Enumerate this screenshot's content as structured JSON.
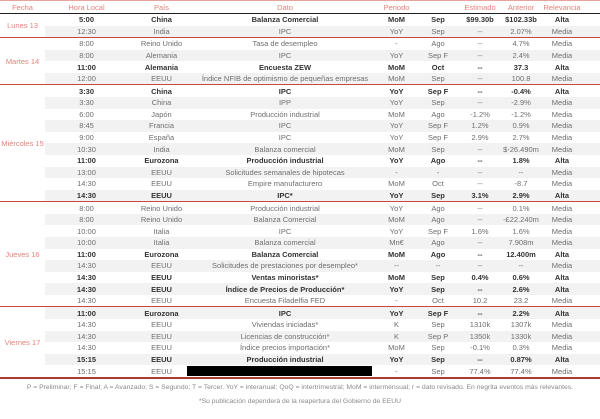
{
  "colors": {
    "accent": "#e4837b",
    "line": "#c9473d",
    "line_light": "#e5a49d",
    "line_strong": "#b03a30",
    "zebra": "#f2f2f2",
    "redact": "#000000"
  },
  "table": {
    "headers": {
      "fecha": "Fecha",
      "hora": "Hora Local",
      "pais": "País",
      "dato": "Dato",
      "periodo": "Periodo",
      "estimado": "Estimado",
      "anterior": "Anterior",
      "relevancia": "Relevancia"
    },
    "days": [
      {
        "label": "Lunes 13",
        "events": [
          {
            "hora": "5:00",
            "pais": "China",
            "dato": "Balanza Comercial",
            "per1": "MoM",
            "per2": "Sep",
            "estimado": "$99.30b",
            "anterior": "$102.33b",
            "relevancia": "Alta",
            "bold": true,
            "redacted": false
          },
          {
            "hora": "12:30",
            "pais": "India",
            "dato": "IPC",
            "per1": "YoY",
            "per2": "Sep",
            "estimado": "--",
            "anterior": "2.07%",
            "relevancia": "Media",
            "bold": false,
            "redacted": false
          }
        ]
      },
      {
        "label": "Martes 14",
        "events": [
          {
            "hora": "8:00",
            "pais": "Reino Unido",
            "dato": "Tasa de desempleo",
            "per1": "-",
            "per2": "Ago",
            "estimado": "--",
            "anterior": "4.7%",
            "relevancia": "Media",
            "bold": false,
            "redacted": false
          },
          {
            "hora": "8:00",
            "pais": "Alemania",
            "dato": "IPC",
            "per1": "YoY",
            "per2": "Sep F",
            "estimado": "--",
            "anterior": "2.4%",
            "relevancia": "Media",
            "bold": false,
            "redacted": false
          },
          {
            "hora": "11:00",
            "pais": "Alemania",
            "dato": "Encuesta ZEW",
            "per1": "MoM",
            "per2": "Oct",
            "estimado": "--",
            "anterior": "37.3",
            "relevancia": "Alta",
            "bold": true,
            "redacted": false
          },
          {
            "hora": "12:00",
            "pais": "EEUU",
            "dato": "Índice NFIB de optimismo de pequeñas empresas",
            "per1": "MoM",
            "per2": "Sep",
            "estimado": "--",
            "anterior": "100.8",
            "relevancia": "Media",
            "bold": false,
            "redacted": false
          }
        ]
      },
      {
        "label": "Miércoles 15",
        "events": [
          {
            "hora": "3:30",
            "pais": "China",
            "dato": "IPC",
            "per1": "YoY",
            "per2": "Sep F",
            "estimado": "--",
            "anterior": "-0.4%",
            "relevancia": "Alta",
            "bold": true,
            "redacted": false
          },
          {
            "hora": "3:30",
            "pais": "China",
            "dato": "IPP",
            "per1": "YoY",
            "per2": "Sep",
            "estimado": "--",
            "anterior": "-2.9%",
            "relevancia": "Media",
            "bold": false,
            "redacted": false
          },
          {
            "hora": "6:00",
            "pais": "Japón",
            "dato": "Producción industrial",
            "per1": "MoM",
            "per2": "Ago",
            "estimado": "-1.2%",
            "anterior": "-1.2%",
            "relevancia": "Media",
            "bold": false,
            "redacted": false
          },
          {
            "hora": "8:45",
            "pais": "Francia",
            "dato": "IPC",
            "per1": "YoY",
            "per2": "Sep F",
            "estimado": "1.2%",
            "anterior": "0.9%",
            "relevancia": "Media",
            "bold": false,
            "redacted": false
          },
          {
            "hora": "9:00",
            "pais": "España",
            "dato": "IPC",
            "per1": "YoY",
            "per2": "Sep F",
            "estimado": "2.9%",
            "anterior": "2.7%",
            "relevancia": "Media",
            "bold": false,
            "redacted": false
          },
          {
            "hora": "10:30",
            "pais": "India",
            "dato": "Balanza comercial",
            "per1": "MoM",
            "per2": "Sep",
            "estimado": "--",
            "anterior": "$-26.490m",
            "relevancia": "Media",
            "bold": false,
            "redacted": false
          },
          {
            "hora": "11:00",
            "pais": "Eurozona",
            "dato": "Producción industrial",
            "per1": "YoY",
            "per2": "Ago",
            "estimado": "--",
            "anterior": "1.8%",
            "relevancia": "Alta",
            "bold": true,
            "redacted": false
          },
          {
            "hora": "13:00",
            "pais": "EEUU",
            "dato": "Solicitudes semanales de hipotecas",
            "per1": "-",
            "per2": "-",
            "estimado": "--",
            "anterior": "--",
            "relevancia": "Media",
            "bold": false,
            "redacted": false
          },
          {
            "hora": "14:30",
            "pais": "EEUU",
            "dato": "Empire manufacturero",
            "per1": "MoM",
            "per2": "Oct",
            "estimado": "--",
            "anterior": "-8.7",
            "relevancia": "Media",
            "bold": false,
            "redacted": false
          },
          {
            "hora": "14:30",
            "pais": "EEUU",
            "dato": "IPC*",
            "per1": "YoY",
            "per2": "Sep",
            "estimado": "3.1%",
            "anterior": "2.9%",
            "relevancia": "Alta",
            "bold": true,
            "redacted": false
          }
        ]
      },
      {
        "label": "Jueves 16",
        "events": [
          {
            "hora": "8:00",
            "pais": "Reino Unido",
            "dato": "Producción industrial",
            "per1": "YoY",
            "per2": "Ago",
            "estimado": "--",
            "anterior": "0.1%",
            "relevancia": "Media",
            "bold": false,
            "redacted": false
          },
          {
            "hora": "8:00",
            "pais": "Reino Unido",
            "dato": "Balanza Comercial",
            "per1": "MoM",
            "per2": "Ago",
            "estimado": "--",
            "anterior": "-£22.240m",
            "relevancia": "Media",
            "bold": false,
            "redacted": false
          },
          {
            "hora": "10:00",
            "pais": "Italia",
            "dato": "IPC",
            "per1": "YoY",
            "per2": "Sep F",
            "estimado": "1.6%",
            "anterior": "1.6%",
            "relevancia": "Media",
            "bold": false,
            "redacted": false
          },
          {
            "hora": "10:00",
            "pais": "Italia",
            "dato": "Balanza comercial",
            "per1": "Mn€",
            "per2": "Ago",
            "estimado": "--",
            "anterior": "7.908m",
            "relevancia": "Media",
            "bold": false,
            "redacted": false
          },
          {
            "hora": "11:00",
            "pais": "Eurozona",
            "dato": "Balanza Comercial",
            "per1": "MoM",
            "per2": "Ago",
            "estimado": "--",
            "anterior": "12.400m",
            "relevancia": "Alta",
            "bold": true,
            "redacted": false
          },
          {
            "hora": "14:30",
            "pais": "EEUU",
            "dato": "Solicitudes de prestaciones por desempleo*",
            "per1": "--",
            "per2": "--",
            "estimado": "--",
            "anterior": "--",
            "relevancia": "Media",
            "bold": false,
            "redacted": false
          },
          {
            "hora": "14:30",
            "pais": "EEUU",
            "dato": "Ventas minoristas*",
            "per1": "MoM",
            "per2": "Sep",
            "estimado": "0.4%",
            "anterior": "0.6%",
            "relevancia": "Alta",
            "bold": true,
            "redacted": false
          },
          {
            "hora": "14:30",
            "pais": "EEUU",
            "dato": "Índice de Precios de Producción*",
            "per1": "YoY",
            "per2": "Sep",
            "estimado": "--",
            "anterior": "2.6%",
            "relevancia": "Alta",
            "bold": true,
            "redacted": false
          },
          {
            "hora": "14:30",
            "pais": "EEUU",
            "dato": "Encuesta Filadelfia FED",
            "per1": "-",
            "per2": "Oct",
            "estimado": "10.2",
            "anterior": "23.2",
            "relevancia": "Media",
            "bold": false,
            "redacted": false
          }
        ]
      },
      {
        "label": "Viernes 17",
        "events": [
          {
            "hora": "11:00",
            "pais": "Eurozona",
            "dato": "IPC",
            "per1": "YoY",
            "per2": "Sep F",
            "estimado": "--",
            "anterior": "2.2%",
            "relevancia": "Alta",
            "bold": true,
            "redacted": false
          },
          {
            "hora": "14:30",
            "pais": "EEUU",
            "dato": "Viviendas iniciadas*",
            "per1": "K",
            "per2": "Sep",
            "estimado": "1310k",
            "anterior": "1307k",
            "relevancia": "Media",
            "bold": false,
            "redacted": false
          },
          {
            "hora": "14:30",
            "pais": "EEUU",
            "dato": "Licencias de construcción*",
            "per1": "K",
            "per2": "Sep P",
            "estimado": "1350k",
            "anterior": "1330k",
            "relevancia": "Media",
            "bold": false,
            "redacted": false
          },
          {
            "hora": "14:30",
            "pais": "EEUU",
            "dato": "Índice precios importación*",
            "per1": "MoM",
            "per2": "Sep",
            "estimado": "-0.1%",
            "anterior": "0.3%",
            "relevancia": "Media",
            "bold": false,
            "redacted": false
          },
          {
            "hora": "15:15",
            "pais": "EEUU",
            "dato": "Producción industrial",
            "per1": "YoY",
            "per2": "Sep",
            "estimado": "--",
            "anterior": "0.87%",
            "relevancia": "Alta",
            "bold": true,
            "redacted": false
          },
          {
            "hora": "15:15",
            "pais": "EEUU",
            "dato": "",
            "per1": "-",
            "per2": "Sep",
            "estimado": "77.4%",
            "anterior": "77.4%",
            "relevancia": "Media",
            "bold": false,
            "redacted": true
          }
        ]
      }
    ]
  },
  "footer": {
    "legend": "P = Preliminar; F = Final; A = Avanzado; S = Segundo; T = Tercer.  YoY = interanual; QoQ = intertrimestral; MoM = intermensual; r = dato revisado. En negrita eventos más relevantes.",
    "note": "*Su publicación dependerá de la reapertura del Gobierno de EEUU"
  }
}
